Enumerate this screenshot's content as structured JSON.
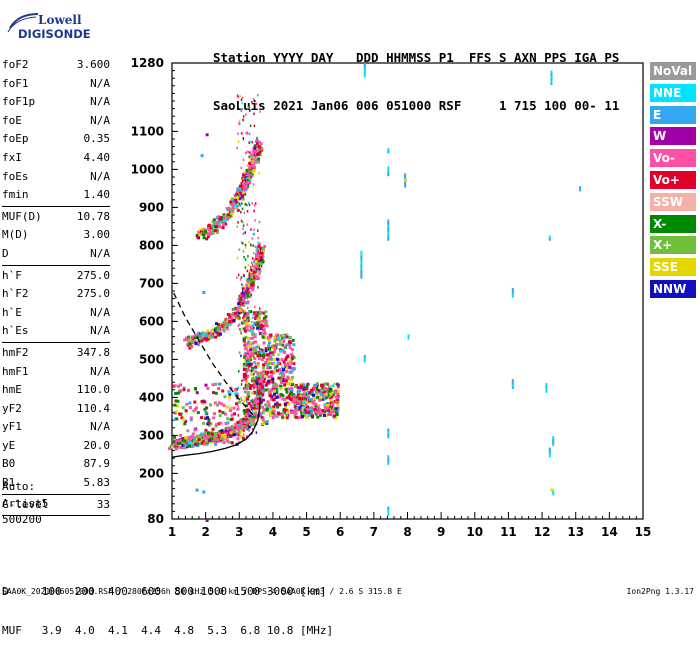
{
  "logo": {
    "line1": "Lowell",
    "line2": "DIGISONDE"
  },
  "header": {
    "line1": "Station YYYY DAY   DDD HHMMSS P1  FFS S AXN PPS IGA PS",
    "line2": "SaoLuis 2021 Jan06 006 051000 RSF     1 715 100 00- 11"
  },
  "params": {
    "group1": [
      {
        "k": "foF2",
        "v": "3.600"
      },
      {
        "k": "foF1",
        "v": "N/A"
      },
      {
        "k": "foF1p",
        "v": "N/A"
      },
      {
        "k": "foE",
        "v": "N/A"
      },
      {
        "k": "foEp",
        "v": "0.35"
      },
      {
        "k": "fxI",
        "v": "4.40"
      },
      {
        "k": "foEs",
        "v": "N/A"
      },
      {
        "k": "fmin",
        "v": "1.40"
      }
    ],
    "group2": [
      {
        "k": "MUF(D)",
        "v": "10.78"
      },
      {
        "k": "M(D)",
        "v": "3.00"
      },
      {
        "k": "D",
        "v": "N/A"
      }
    ],
    "group3": [
      {
        "k": "h`F",
        "v": "275.0"
      },
      {
        "k": "h`F2",
        "v": "275.0"
      },
      {
        "k": "h`E",
        "v": "N/A"
      },
      {
        "k": "h`Es",
        "v": "N/A"
      }
    ],
    "group4": [
      {
        "k": "hmF2",
        "v": "347.8"
      },
      {
        "k": "hmF1",
        "v": "N/A"
      },
      {
        "k": "hmE",
        "v": "110.0"
      },
      {
        "k": "yF2",
        "v": "110.4"
      },
      {
        "k": "yF1",
        "v": "N/A"
      },
      {
        "k": "yE",
        "v": "20.0"
      },
      {
        "k": "B0",
        "v": "87.9"
      },
      {
        "k": "B1",
        "v": "5.83"
      }
    ],
    "group5": [
      {
        "k": "C-level",
        "v": "33"
      }
    ]
  },
  "auto": {
    "line1": "Auto:",
    "line2": "Artist5",
    "line3": "500200"
  },
  "legend": [
    {
      "label": "NoVal",
      "color": "#9a9a9a"
    },
    {
      "label": "NNE",
      "color": "#00e5ff"
    },
    {
      "label": "E",
      "color": "#33a8f0"
    },
    {
      "label": "W",
      "color": "#a000a8"
    },
    {
      "label": "Vo-",
      "color": "#ff4fa6"
    },
    {
      "label": "Vo+",
      "color": "#e0002a"
    },
    {
      "label": "SSW",
      "color": "#f5b0a8"
    },
    {
      "label": "X-",
      "color": "#008a00"
    },
    {
      "label": "X+",
      "color": "#6fbf3a"
    },
    {
      "label": "SSE",
      "color": "#e6d600"
    },
    {
      "label": "NNW",
      "color": "#1010c0"
    }
  ],
  "dmuf": {
    "line1": "D     100  200  400  600  800 1000 1500 3000 [km]",
    "line2": "MUF   3.9  4.0  4.1  4.4  4.8  5.3  6.8 10.8 [MHz]"
  },
  "footer": {
    "left": "SAA0K_2021006051000.RSF / 280fx256h 50 kHz 5.0 km / DPS-4 SAA0K 903 / 2.6 S 315.8 E",
    "right": "Ion2Png 1.3.17"
  },
  "chart_data": {
    "type": "scatter",
    "x_ticks": [
      1,
      2,
      3,
      4,
      5,
      6,
      7,
      8,
      9,
      10,
      11,
      12,
      13,
      14,
      15
    ],
    "y_ticks": [
      80,
      200,
      300,
      400,
      500,
      600,
      700,
      800,
      900,
      1000,
      1100,
      1280
    ],
    "xlim": [
      1,
      15
    ],
    "ylim": [
      80,
      1280
    ],
    "traces": [
      {
        "name": "F2 O-trace",
        "x": [
          1.0,
          1.3,
          1.6,
          1.9,
          2.2,
          2.5,
          2.8,
          3.1,
          3.3,
          3.45,
          3.55,
          3.6
        ],
        "y": [
          280,
          283,
          288,
          292,
          298,
          305,
          315,
          330,
          350,
          380,
          420,
          470
        ]
      },
      {
        "name": "F2 2-hop",
        "x": [
          1.4,
          1.8,
          2.2,
          2.6,
          2.9,
          3.1,
          3.3,
          3.45,
          3.55,
          3.6
        ],
        "y": [
          545,
          560,
          575,
          600,
          630,
          665,
          700,
          735,
          770,
          800
        ]
      },
      {
        "name": "F2 3-hop",
        "x": [
          1.8,
          2.2,
          2.6,
          2.9,
          3.1,
          3.3,
          3.45,
          3.55
        ],
        "y": [
          830,
          850,
          880,
          920,
          960,
          1000,
          1040,
          1070
        ]
      }
    ],
    "profile_solid": {
      "x": [
        1.0,
        1.4,
        1.8,
        2.2,
        2.6,
        2.9,
        3.2,
        3.4,
        3.55,
        3.6,
        3.62
      ],
      "y": [
        243,
        248,
        252,
        258,
        266,
        275,
        290,
        310,
        340,
        370,
        400
      ]
    },
    "profile_dashed": {
      "x": [
        1.05,
        1.4,
        1.8,
        2.2,
        2.6,
        2.9,
        3.2,
        3.4
      ],
      "y": [
        675,
        610,
        550,
        490,
        440,
        405,
        375,
        355
      ]
    }
  }
}
